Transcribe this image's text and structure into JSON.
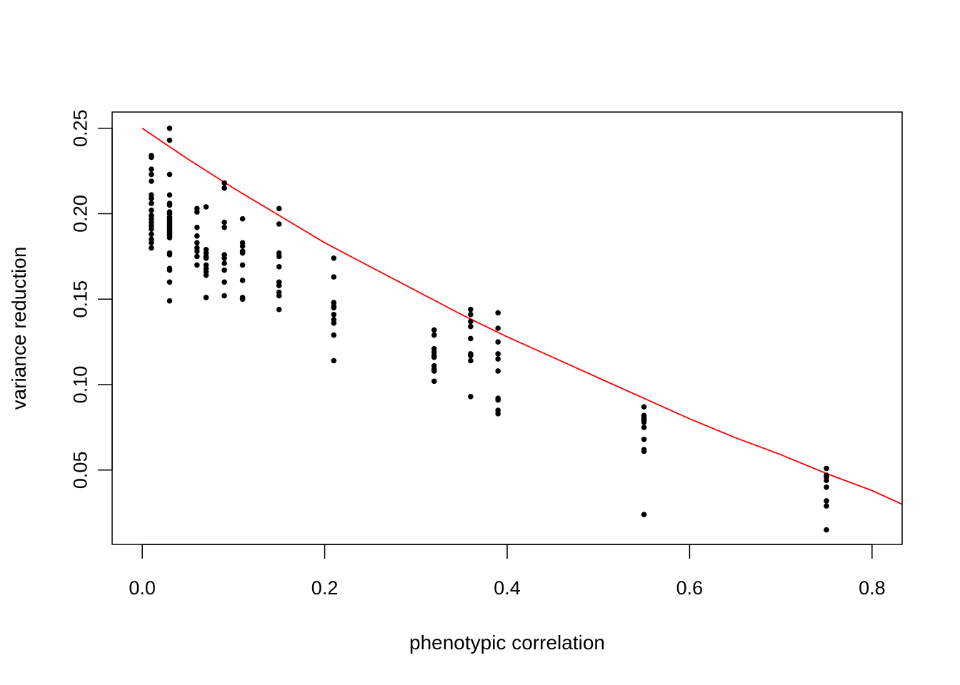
{
  "chart_data": {
    "type": "scatter",
    "title": "",
    "xlabel": "phenotypic correlation",
    "ylabel": "variance reduction",
    "xlim": [
      -0.033,
      0.833
    ],
    "ylim": [
      0.0065,
      0.2595
    ],
    "xticks": [
      0.0,
      0.2,
      0.4,
      0.6,
      0.8
    ],
    "xtick_labels": [
      "0.0",
      "0.2",
      "0.4",
      "0.6",
      "0.8"
    ],
    "yticks": [
      0.05,
      0.1,
      0.15,
      0.2,
      0.25
    ],
    "ytick_labels": [
      "0.05",
      "0.10",
      "0.15",
      "0.20",
      "0.25"
    ],
    "grid": false,
    "point_color": "#000000",
    "curve_color": "#ff0000",
    "series": [
      {
        "values": [
          {
            "x": 0.01,
            "y": [
              0.234,
              0.233,
              0.226,
              0.223,
              0.219,
              0.211,
              0.209,
              0.206,
              0.202,
              0.199,
              0.197,
              0.195,
              0.193,
              0.191,
              0.188,
              0.185,
              0.183,
              0.18
            ]
          },
          {
            "x": 0.03,
            "y": [
              0.25,
              0.243,
              0.223,
              0.211,
              0.206,
              0.205,
              0.201,
              0.2,
              0.198,
              0.197,
              0.196,
              0.195,
              0.194,
              0.193,
              0.192,
              0.191,
              0.19,
              0.189,
              0.188,
              0.187,
              0.186,
              0.177,
              0.176,
              0.168,
              0.167,
              0.16,
              0.149
            ]
          },
          {
            "x": 0.06,
            "y": [
              0.203,
              0.201,
              0.192,
              0.187,
              0.183,
              0.18,
              0.178,
              0.175,
              0.17
            ]
          },
          {
            "x": 0.07,
            "y": [
              0.204,
              0.179,
              0.177,
              0.175,
              0.174,
              0.17,
              0.168,
              0.166,
              0.164,
              0.151
            ]
          },
          {
            "x": 0.09,
            "y": [
              0.218,
              0.215,
              0.195,
              0.192,
              0.176,
              0.174,
              0.171,
              0.167,
              0.16,
              0.152
            ]
          },
          {
            "x": 0.11,
            "y": [
              0.197,
              0.183,
              0.181,
              0.178,
              0.177,
              0.17,
              0.161,
              0.151,
              0.15
            ]
          },
          {
            "x": 0.15,
            "y": [
              0.203,
              0.194,
              0.177,
              0.175,
              0.169,
              0.16,
              0.158,
              0.154,
              0.152,
              0.144
            ]
          },
          {
            "x": 0.21,
            "y": [
              0.174,
              0.163,
              0.148,
              0.146,
              0.145,
              0.141,
              0.138,
              0.136,
              0.129,
              0.114
            ]
          },
          {
            "x": 0.32,
            "y": [
              0.132,
              0.129,
              0.121,
              0.119,
              0.117,
              0.116,
              0.111,
              0.109,
              0.108,
              0.102
            ]
          },
          {
            "x": 0.36,
            "y": [
              0.144,
              0.141,
              0.137,
              0.134,
              0.127,
              0.118,
              0.117,
              0.114,
              0.093
            ]
          },
          {
            "x": 0.39,
            "y": [
              0.142,
              0.133,
              0.125,
              0.118,
              0.115,
              0.108,
              0.092,
              0.091,
              0.085,
              0.083
            ]
          },
          {
            "x": 0.55,
            "y": [
              0.087,
              0.082,
              0.081,
              0.08,
              0.079,
              0.078,
              0.075,
              0.068,
              0.062,
              0.061,
              0.024
            ]
          },
          {
            "x": 0.75,
            "y": [
              0.051,
              0.047,
              0.046,
              0.044,
              0.04,
              0.032,
              0.029,
              0.015
            ]
          }
        ]
      }
    ],
    "curve": {
      "x": [
        0.0,
        0.05,
        0.1,
        0.15,
        0.2,
        0.25,
        0.3,
        0.35,
        0.4,
        0.45,
        0.5,
        0.55,
        0.6,
        0.65,
        0.7,
        0.75,
        0.8,
        0.833
      ],
      "y": [
        0.25,
        0.232,
        0.215,
        0.199,
        0.183,
        0.169,
        0.155,
        0.141,
        0.128,
        0.116,
        0.104,
        0.092,
        0.08,
        0.069,
        0.059,
        0.048,
        0.038,
        0.03
      ]
    }
  }
}
